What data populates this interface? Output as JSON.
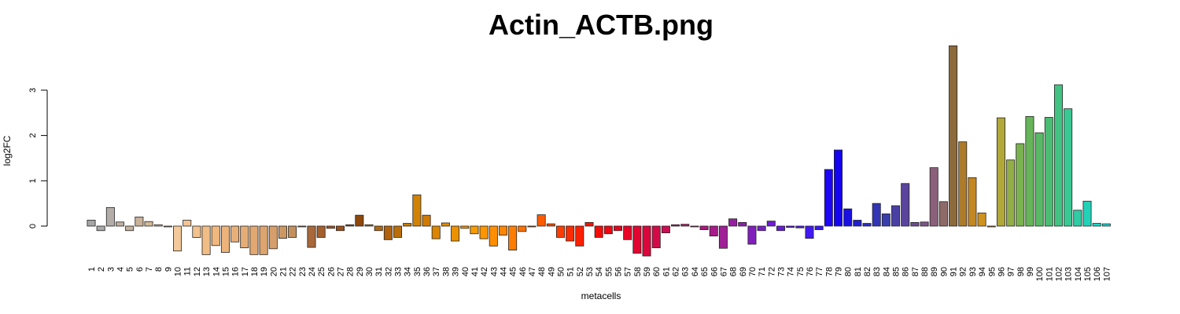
{
  "chart_data": {
    "type": "bar",
    "title": "Actin_ACTB.png",
    "xlabel": "metacells",
    "ylabel": "log2FC",
    "ylim": [
      -0.7,
      4.0
    ],
    "yticks": [
      0,
      1,
      2,
      3
    ],
    "grid": false,
    "legend": "none",
    "categories": [
      "1",
      "2",
      "3",
      "4",
      "5",
      "6",
      "7",
      "8",
      "9",
      "10",
      "11",
      "12",
      "13",
      "14",
      "15",
      "16",
      "17",
      "18",
      "19",
      "20",
      "21",
      "22",
      "23",
      "24",
      "25",
      "26",
      "27",
      "28",
      "29",
      "30",
      "31",
      "32",
      "33",
      "34",
      "35",
      "36",
      "37",
      "38",
      "39",
      "40",
      "41",
      "42",
      "43",
      "44",
      "45",
      "46",
      "47",
      "48",
      "49",
      "50",
      "51",
      "52",
      "53",
      "54",
      "55",
      "56",
      "57",
      "58",
      "59",
      "60",
      "61",
      "62",
      "63",
      "64",
      "65",
      "66",
      "67",
      "68",
      "69",
      "70",
      "71",
      "72",
      "73",
      "74",
      "75",
      "76",
      "77",
      "78",
      "79",
      "80",
      "81",
      "82",
      "83",
      "84",
      "85",
      "86",
      "87",
      "88",
      "89",
      "90",
      "91",
      "92",
      "93",
      "94",
      "95",
      "96",
      "97",
      "98",
      "99",
      "100",
      "101",
      "102",
      "103",
      "104",
      "105",
      "106",
      "107"
    ],
    "values": [
      0.13,
      -0.1,
      0.41,
      0.09,
      -0.1,
      0.2,
      0.1,
      0.03,
      0.0,
      -0.55,
      0.13,
      -0.25,
      -0.63,
      -0.43,
      -0.58,
      -0.35,
      -0.48,
      -0.63,
      -0.63,
      -0.5,
      -0.27,
      -0.25,
      0.0,
      -0.47,
      -0.25,
      -0.05,
      -0.1,
      0.03,
      0.24,
      0.03,
      -0.1,
      -0.3,
      -0.25,
      0.06,
      0.69,
      0.24,
      -0.28,
      0.07,
      -0.33,
      -0.05,
      -0.17,
      -0.28,
      -0.44,
      -0.2,
      -0.53,
      -0.12,
      0.0,
      0.25,
      0.05,
      -0.25,
      -0.33,
      -0.44,
      0.08,
      -0.25,
      -0.17,
      -0.1,
      -0.3,
      -0.6,
      -0.66,
      -0.48,
      -0.15,
      0.03,
      0.04,
      0.0,
      -0.08,
      -0.22,
      -0.49,
      0.16,
      0.08,
      -0.4,
      -0.1,
      0.11,
      -0.1,
      -0.03,
      -0.04,
      -0.27,
      -0.08,
      1.25,
      1.68,
      0.38,
      0.13,
      0.06,
      0.5,
      0.27,
      0.45,
      0.94,
      0.08,
      0.09,
      1.29,
      0.54,
      3.98,
      1.86,
      1.07,
      0.29,
      0.0,
      2.39,
      1.46,
      1.82,
      2.42,
      2.06,
      2.4,
      3.12,
      2.59,
      0.35,
      0.55,
      0.06,
      0.05
    ],
    "colors": [
      "#a6a6a6",
      "#a9a9a9",
      "#b3ada9",
      "#bfb2a3",
      "#c4b29d",
      "#c9b299",
      "#d2b896",
      "#dbbb96",
      "#e0c09e",
      "#f3c89a",
      "#f2c493",
      "#f3c18c",
      "#f1bd85",
      "#f0b87f",
      "#ecb37b",
      "#e8b079",
      "#e5ad76",
      "#e2a872",
      "#dca46e",
      "#d69e6a",
      "#cd9762",
      "#c38f5c",
      "#b87e4e",
      "#a8683a",
      "#a45f2c",
      "#a0581f",
      "#9c5218",
      "#984c12",
      "#8e480b",
      "#b57213",
      "#b06a10",
      "#b0620e",
      "#b86e0b",
      "#c47a08",
      "#d08207",
      "#cf7a03",
      "#dc8500",
      "#e08c00",
      "#eb9200",
      "#f39700",
      "#f79b00",
      "#fc9500",
      "#ff8e00",
      "#ff8600",
      "#ff7d00",
      "#ff7200",
      "#ff6600",
      "#ff5a00",
      "#ff4c00",
      "#ff3d00",
      "#fe2c00",
      "#fc1f00",
      "#f81300",
      "#f50b08",
      "#f20511",
      "#ee021b",
      "#e80226",
      "#e20531",
      "#db073c",
      "#d40a48",
      "#cf0c52",
      "#c80e5d",
      "#c01068",
      "#b81274",
      "#b0167f",
      "#a81a8a",
      "#a01e96",
      "#9620a2",
      "#8c20ad",
      "#801fbb",
      "#771fc6",
      "#6e1ed0",
      "#641dda",
      "#5a1ce4",
      "#4e1aee",
      "#4219f5",
      "#3618fa",
      "#1d06f5",
      "#1404f0",
      "#1a10e0",
      "#2120cf",
      "#2a2dc0",
      "#3236b4",
      "#3a3dac",
      "#4a40a4",
      "#5a449c",
      "#6c4c92",
      "#7c5586",
      "#8a607a",
      "#8e6a68",
      "#8d6a3c",
      "#ad7b2a",
      "#c38722",
      "#d0921f",
      "#cc9d26",
      "#b2a83a",
      "#93ad47",
      "#79b24e",
      "#66b45a",
      "#58b865",
      "#4bbd73",
      "#42c383",
      "#38c893",
      "#2fcca5",
      "#22d2b8",
      "#18d7ca",
      "#15dada"
    ]
  }
}
